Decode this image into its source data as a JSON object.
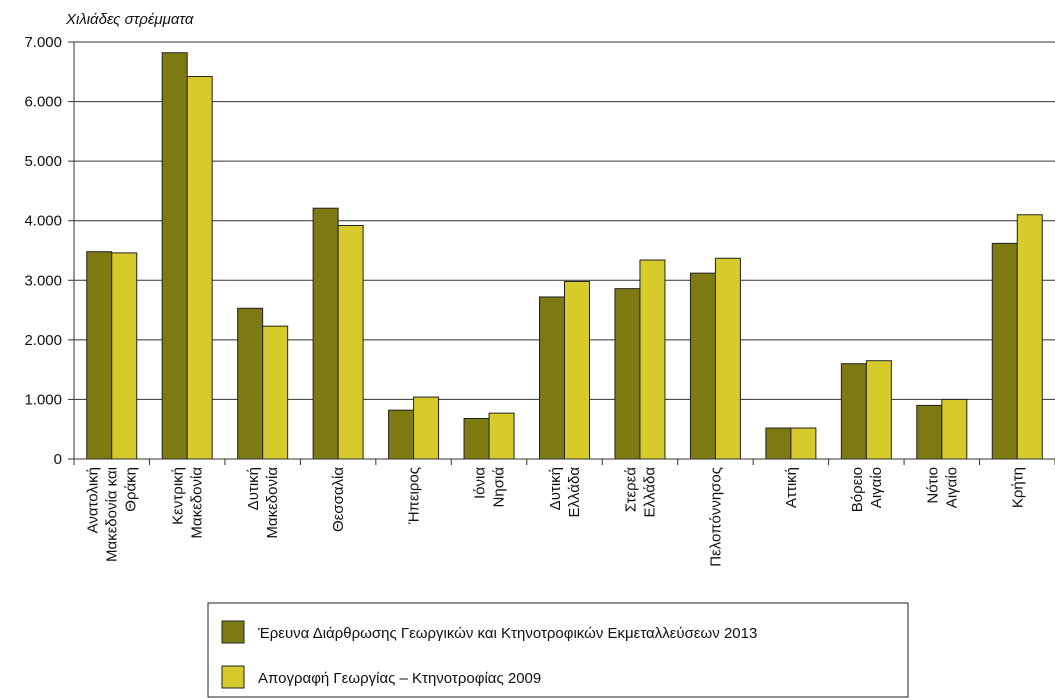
{
  "chart_data": {
    "type": "bar",
    "ylabel": "Χιλιάδες στρέμματα",
    "ylim": [
      0,
      7000
    ],
    "yticks": [
      0,
      1000,
      2000,
      3000,
      4000,
      5000,
      6000,
      7000
    ],
    "ytick_labels": [
      "0",
      "1.000",
      "2.000",
      "3.000",
      "4.000",
      "5.000",
      "6.000",
      "7.000"
    ],
    "grid": "horizontal",
    "legend_position": "bottom",
    "categories": [
      "Ανατολική Μακεδονία και Θράκη",
      "Κεντρική Μακεδονία",
      "Δυτική Μακεδονία",
      "Θεσσαλία",
      "Ήπειρος",
      "Ιόνια Νησιά",
      "Δυτική Ελλάδα",
      "Στερεά Ελλάδα",
      "Πελοπόννησος",
      "Αττική",
      "Βόρειο Αιγαίο",
      "Νότιο Αιγαίο",
      "Κρήτη"
    ],
    "category_lines": [
      [
        "Ανατολική",
        "Μακεδονία και",
        "Θράκη"
      ],
      [
        "Κεντρική",
        "Μακεδονία"
      ],
      [
        "Δυτική",
        "Μακεδονία"
      ],
      [
        "Θεσσαλία"
      ],
      [
        "Ήπειρος"
      ],
      [
        "Ιόνια",
        "Νησιά"
      ],
      [
        "Δυτική",
        "Ελλάδα"
      ],
      [
        "Στερεά",
        "Ελλάδα"
      ],
      [
        "Πελοπόννησος"
      ],
      [
        "Αττική"
      ],
      [
        "Βόρειο",
        "Αιγαίο"
      ],
      [
        "Νότιο",
        "Αιγαίο"
      ],
      [
        "Κρήτη"
      ]
    ],
    "series": [
      {
        "name": "Έρευνα Διάρθρωσης Γεωργικών και Κτηνοτροφικών Εκμεταλλεύσεων 2013",
        "color": "#7e7a12",
        "values": [
          3480,
          6820,
          2530,
          4210,
          820,
          680,
          2720,
          2860,
          3120,
          520,
          1600,
          900,
          3620
        ]
      },
      {
        "name": "Απογραφή Γεωργίας – Κτηνοτροφίας 2009",
        "color": "#d6cb2b",
        "values": [
          3460,
          6420,
          2230,
          3920,
          1040,
          770,
          2980,
          3340,
          3370,
          520,
          1650,
          1000,
          4100
        ]
      }
    ]
  }
}
